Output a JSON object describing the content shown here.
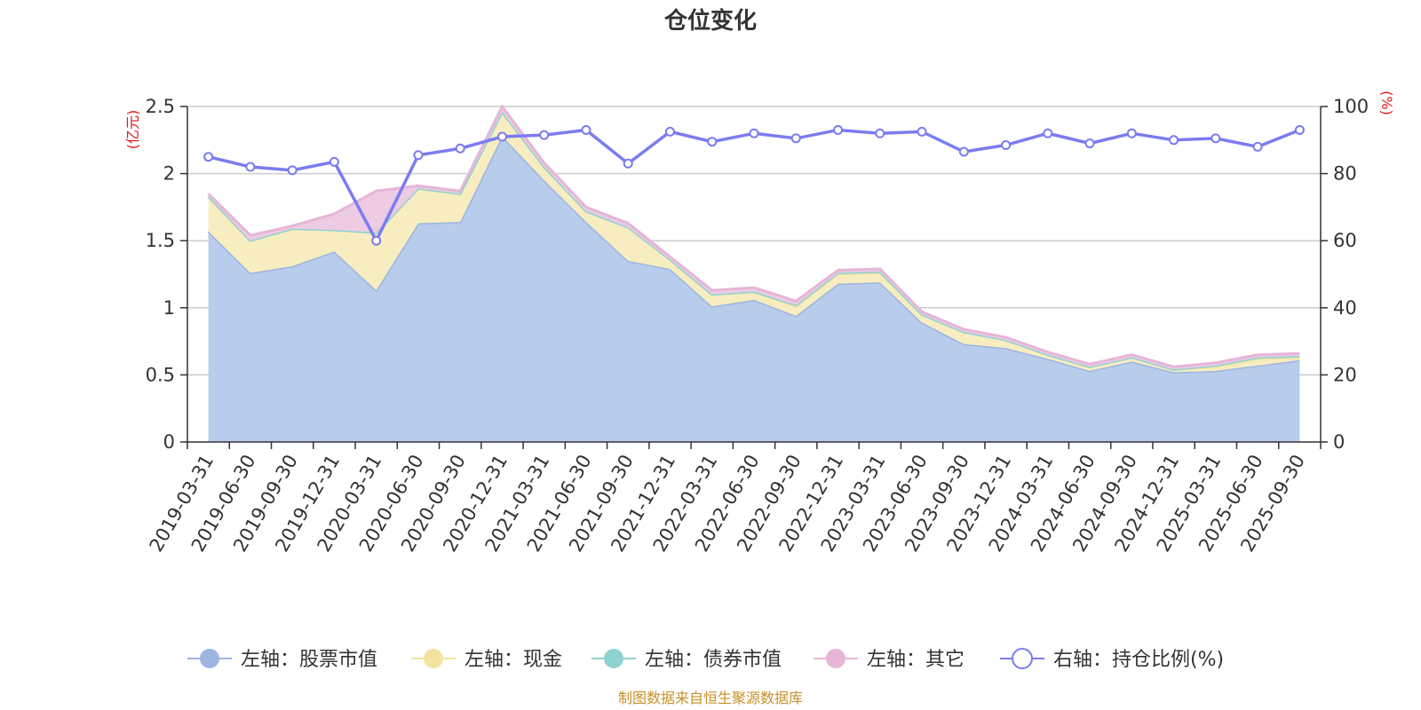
{
  "chart_data": {
    "type": "area",
    "title": "仓位变化",
    "left_unit": "(亿元)",
    "right_unit": "(%)",
    "source": "制图数据来自恒生聚源数据库",
    "left_axis": {
      "min": 0,
      "max": 2.5,
      "ticks": [
        "0",
        "0.5",
        "1",
        "1.5",
        "2",
        "2.5"
      ],
      "tick_values": [
        0,
        0.5,
        1,
        1.5,
        2,
        2.5
      ]
    },
    "right_axis": {
      "min": 0,
      "max": 100,
      "ticks": [
        "0",
        "20",
        "40",
        "60",
        "80",
        "100"
      ],
      "tick_values": [
        0,
        20,
        40,
        60,
        80,
        100
      ]
    },
    "categories": [
      "2019-03-31",
      "2019-06-30",
      "2019-09-30",
      "2019-12-31",
      "2020-03-31",
      "2020-06-30",
      "2020-09-30",
      "2020-12-31",
      "2021-03-31",
      "2021-06-30",
      "2021-09-30",
      "2021-12-31",
      "2022-03-31",
      "2022-06-30",
      "2022-09-30",
      "2022-12-31",
      "2023-03-31",
      "2023-06-30",
      "2023-09-30",
      "2023-12-31",
      "2024-03-31",
      "2024-06-30",
      "2024-09-30",
      "2024-12-31",
      "2025-03-31",
      "2025-06-30",
      "2025-09-30"
    ],
    "series": [
      {
        "name": "左轴：股票市值",
        "axis": "left",
        "stack": true,
        "color": "#9db5e0",
        "fill": "#b8cceb",
        "values": [
          1.57,
          1.26,
          1.31,
          1.42,
          1.13,
          1.63,
          1.64,
          2.28,
          1.95,
          1.64,
          1.35,
          1.29,
          1.01,
          1.06,
          0.94,
          1.18,
          1.19,
          0.89,
          0.73,
          0.7,
          0.62,
          0.53,
          0.6,
          0.52,
          0.53,
          0.57,
          0.61
        ]
      },
      {
        "name": "左轴：现金",
        "axis": "left",
        "stack": true,
        "color": "#f3e3a0",
        "fill": "#f8edc0",
        "values": [
          0.26,
          0.24,
          0.28,
          0.16,
          0.43,
          0.26,
          0.21,
          0.18,
          0.1,
          0.08,
          0.25,
          0.07,
          0.09,
          0.06,
          0.07,
          0.07,
          0.07,
          0.06,
          0.09,
          0.06,
          0.03,
          0.03,
          0.03,
          0.02,
          0.03,
          0.05,
          0.02
        ]
      },
      {
        "name": "左轴：债券市值",
        "axis": "left",
        "stack": true,
        "color": "#8fd3d0",
        "fill": "#b8e6e3",
        "values": [
          0,
          0,
          0,
          0,
          0,
          0,
          0,
          0,
          0,
          0,
          0,
          0,
          0,
          0,
          0.01,
          0.01,
          0.01,
          0,
          0,
          0,
          0,
          0,
          0,
          0,
          0.01,
          0.01,
          0.01
        ]
      },
      {
        "name": "左轴：其它",
        "axis": "left",
        "stack": true,
        "color": "#e6b5d8",
        "fill": "#eccbe3",
        "values": [
          0.02,
          0.04,
          0.02,
          0.12,
          0.31,
          0.02,
          0.02,
          0.04,
          0.03,
          0.03,
          0.03,
          0.02,
          0.03,
          0.03,
          0.03,
          0.02,
          0.02,
          0.02,
          0.02,
          0.02,
          0.02,
          0.02,
          0.02,
          0.02,
          0.02,
          0.02,
          0.02
        ]
      },
      {
        "name": "右轴：持仓比例(%)",
        "axis": "right",
        "stack": false,
        "color": "#7b7cf0",
        "values": [
          85,
          82,
          81,
          83.5,
          60,
          85.5,
          87.5,
          91,
          91.5,
          93,
          83,
          92.5,
          89.5,
          92,
          90.5,
          93,
          92,
          92.5,
          86.5,
          88.5,
          92,
          89,
          92,
          90,
          90.5,
          88,
          93
        ]
      }
    ],
    "legend": [
      "左轴：股票市值",
      "左轴：现金",
      "左轴：债券市值",
      "左轴：其它",
      "右轴：持仓比例(%)"
    ]
  }
}
